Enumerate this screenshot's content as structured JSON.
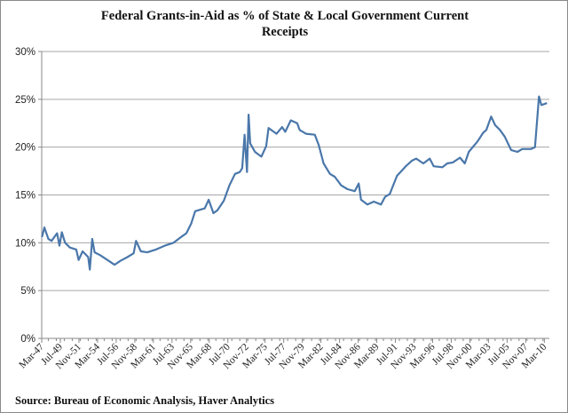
{
  "chart_data": {
    "type": "line",
    "title": "Federal Grants-in-Aid  as % of State & Local Government Current Receipts",
    "title_lines": [
      "Federal Grants-in-Aid  as % of State & Local Government Current",
      "Receipts"
    ],
    "source": "Source:  Bureau of Economic Analysis, Haver Analytics",
    "xlabel": "",
    "ylabel": "",
    "ylim": [
      0,
      30
    ],
    "xlim": [
      1947.17,
      2010.8
    ],
    "y_ticks": [
      {
        "v": 0,
        "label": "0%"
      },
      {
        "v": 5,
        "label": "5%"
      },
      {
        "v": 10,
        "label": "10%"
      },
      {
        "v": 15,
        "label": "15%"
      },
      {
        "v": 20,
        "label": "20%"
      },
      {
        "v": 25,
        "label": "25%"
      },
      {
        "v": 30,
        "label": "30%"
      }
    ],
    "x_tick_labels": [
      "Mar-47",
      "Jul-49",
      "Nov-51",
      "Mar-54",
      "Jul-56",
      "Nov-58",
      "Mar-61",
      "Jul-63",
      "Nov-65",
      "Mar-68",
      "Jul-70",
      "Nov-72",
      "Mar-75",
      "Jul-77",
      "Nov-79",
      "Mar-82",
      "Jul-84",
      "Nov-86",
      "Mar-89",
      "Jul-91",
      "Nov-93",
      "Mar-96",
      "Jul-98",
      "Nov-00",
      "Mar-03",
      "Jul-05",
      "Nov-07",
      "Mar-10"
    ],
    "x_tick_start": 1947.17,
    "x_tick_step_years": 2.3333,
    "grid": true,
    "line_color": "#4a77aa",
    "series": [
      {
        "name": "Federal grants-in-aid % of S&L current receipts",
        "x": [
          1947.2,
          1947.5,
          1948.0,
          1948.4,
          1949.1,
          1949.4,
          1949.7,
          1950.1,
          1950.7,
          1951.5,
          1951.8,
          1952.3,
          1953.0,
          1953.2,
          1953.5,
          1953.8,
          1954.5,
          1955.4,
          1956.3,
          1957.0,
          1957.9,
          1958.7,
          1959.0,
          1959.6,
          1960.4,
          1961.5,
          1962.6,
          1963.7,
          1964.8,
          1965.3,
          1965.9,
          1966.4,
          1967.6,
          1968.1,
          1968.7,
          1969.2,
          1970.0,
          1970.7,
          1971.4,
          1972.0,
          1972.3,
          1972.6,
          1972.9,
          1973.1,
          1973.3,
          1973.9,
          1974.7,
          1975.3,
          1975.6,
          1976.6,
          1977.3,
          1977.7,
          1978.4,
          1979.2,
          1979.5,
          1980.3,
          1981.4,
          1981.9,
          1982.5,
          1983.3,
          1983.9,
          1984.7,
          1985.5,
          1986.4,
          1986.9,
          1987.2,
          1988.0,
          1988.8,
          1989.7,
          1990.2,
          1990.8,
          1991.7,
          1992.8,
          1993.6,
          1994.1,
          1995.0,
          1995.8,
          1996.3,
          1997.4,
          1998.0,
          1998.7,
          1999.6,
          2000.2,
          2000.7,
          2001.8,
          2002.5,
          2002.9,
          2003.5,
          2004.0,
          2004.6,
          2005.2,
          2006.0,
          2006.8,
          2007.4,
          2008.5,
          2009.0,
          2009.5,
          2009.8,
          2010.5
        ],
        "values": [
          10.6,
          11.6,
          10.4,
          10.2,
          11.0,
          9.7,
          11.1,
          10.0,
          9.5,
          9.3,
          8.2,
          9.1,
          8.5,
          7.2,
          10.4,
          9.0,
          8.7,
          8.2,
          7.7,
          8.1,
          8.5,
          8.9,
          10.2,
          9.1,
          9.0,
          9.3,
          9.7,
          10.0,
          10.7,
          11.0,
          12.0,
          13.3,
          13.6,
          14.5,
          13.1,
          13.4,
          14.4,
          16.0,
          17.2,
          17.4,
          17.8,
          21.3,
          17.4,
          23.4,
          20.4,
          19.5,
          19.0,
          20.1,
          22.0,
          21.4,
          22.1,
          21.6,
          22.8,
          22.5,
          21.8,
          21.4,
          21.3,
          20.2,
          18.3,
          17.2,
          16.9,
          16.0,
          15.6,
          15.4,
          16.2,
          14.5,
          14.0,
          14.3,
          14.0,
          14.8,
          15.1,
          17.0,
          18.0,
          18.6,
          18.8,
          18.3,
          18.8,
          18.0,
          17.9,
          18.3,
          18.4,
          18.9,
          18.3,
          19.5,
          20.6,
          21.5,
          21.8,
          23.2,
          22.3,
          21.8,
          21.1,
          19.7,
          19.5,
          19.8,
          19.8,
          20.0,
          25.3,
          24.4,
          24.6
        ]
      }
    ]
  }
}
